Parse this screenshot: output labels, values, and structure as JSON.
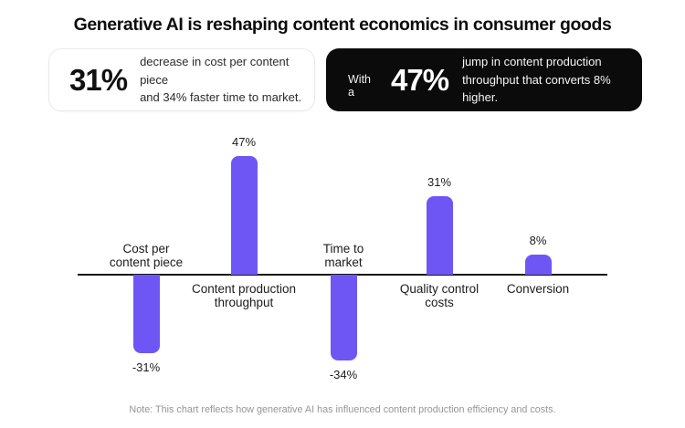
{
  "header": {
    "title": "Generative AI is reshaping content economics in consumer goods"
  },
  "stat_cards": [
    {
      "variant": "light",
      "value": "31%",
      "desc_line1": "decrease in cost per content piece",
      "desc_line2": "and 34% faster time to market."
    },
    {
      "variant": "dark",
      "prefix": "With a",
      "value": "47%",
      "desc_line1": "jump in content production",
      "desc_line2": "throughput that converts 8% higher."
    }
  ],
  "chart_data": {
    "type": "bar",
    "orientation": "vertical-diverging",
    "categories": [
      "Cost per content piece",
      "Content production throughput",
      "Time to market",
      "Quality control costs",
      "Conversion"
    ],
    "category_lines": [
      [
        "Cost per",
        "content piece"
      ],
      [
        "Content production",
        "throughput"
      ],
      [
        "Time to",
        "market"
      ],
      [
        "Quality control",
        "costs"
      ],
      [
        "Conversion"
      ]
    ],
    "values": [
      -31,
      47,
      -34,
      31,
      8
    ],
    "value_labels": [
      "-31%",
      "47%",
      "-34%",
      "31%",
      "8%"
    ],
    "bar_color": "#6e56f4",
    "axis_color": "#161616",
    "baseline": 0,
    "ylim": [
      -40,
      50
    ],
    "grid": false,
    "legend": "none"
  },
  "note": {
    "text": "Note: This chart reflects how generative AI has influenced content production efficiency and costs."
  }
}
